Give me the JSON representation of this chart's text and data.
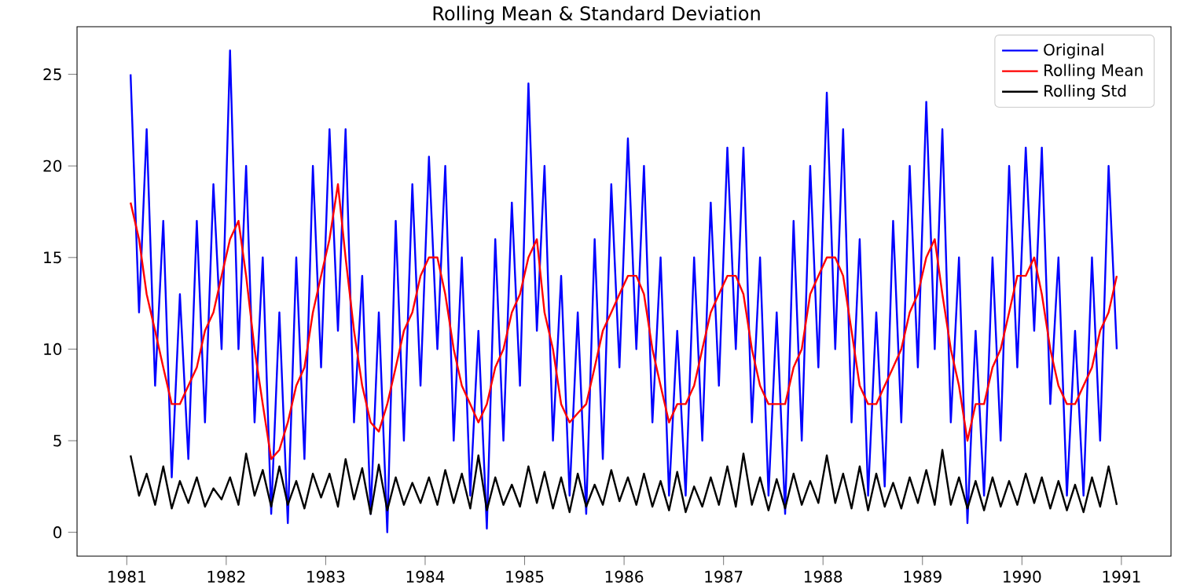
{
  "chart_data": {
    "type": "line",
    "title": "Rolling Mean & Standard Deviation",
    "x": [
      "1981-01-15",
      "1981-02-15",
      "1981-03-15",
      "1981-04-15",
      "1981-05-15",
      "1981-06-15",
      "1981-07-15",
      "1981-08-15",
      "1981-09-15",
      "1981-10-15",
      "1981-11-15",
      "1981-12-15",
      "1982-01-15",
      "1982-02-15",
      "1982-03-15",
      "1982-04-15",
      "1982-05-15",
      "1982-06-15",
      "1982-07-15",
      "1982-08-15",
      "1982-09-15",
      "1982-10-15",
      "1982-11-15",
      "1982-12-15",
      "1983-01-15",
      "1983-02-15",
      "1983-03-15",
      "1983-04-15",
      "1983-05-15",
      "1983-06-15",
      "1983-07-15",
      "1983-08-15",
      "1983-09-15",
      "1983-10-15",
      "1983-11-15",
      "1983-12-15",
      "1984-01-15",
      "1984-02-15",
      "1984-03-15",
      "1984-04-15",
      "1984-05-15",
      "1984-06-15",
      "1984-07-15",
      "1984-08-15",
      "1984-09-15",
      "1984-10-15",
      "1984-11-15",
      "1984-12-15",
      "1985-01-15",
      "1985-02-15",
      "1985-03-15",
      "1985-04-15",
      "1985-05-15",
      "1985-06-15",
      "1985-07-15",
      "1985-08-15",
      "1985-09-15",
      "1985-10-15",
      "1985-11-15",
      "1985-12-15",
      "1986-01-15",
      "1986-02-15",
      "1986-03-15",
      "1986-04-15",
      "1986-05-15",
      "1986-06-15",
      "1986-07-15",
      "1986-08-15",
      "1986-09-15",
      "1986-10-15",
      "1986-11-15",
      "1986-12-15",
      "1987-01-15",
      "1987-02-15",
      "1987-03-15",
      "1987-04-15",
      "1987-05-15",
      "1987-06-15",
      "1987-07-15",
      "1987-08-15",
      "1987-09-15",
      "1987-10-15",
      "1987-11-15",
      "1987-12-15",
      "1988-01-15",
      "1988-02-15",
      "1988-03-15",
      "1988-04-15",
      "1988-05-15",
      "1988-06-15",
      "1988-07-15",
      "1988-08-15",
      "1988-09-15",
      "1988-10-15",
      "1988-11-15",
      "1988-12-15",
      "1989-01-15",
      "1989-02-15",
      "1989-03-15",
      "1989-04-15",
      "1989-05-15",
      "1989-06-15",
      "1989-07-15",
      "1989-08-15",
      "1989-09-15",
      "1989-10-15",
      "1989-11-15",
      "1989-12-15",
      "1990-01-15",
      "1990-02-15",
      "1990-03-15",
      "1990-04-15",
      "1990-05-15",
      "1990-06-15",
      "1990-07-15",
      "1990-08-15",
      "1990-09-15",
      "1990-10-15",
      "1990-11-15",
      "1990-12-15"
    ],
    "series": [
      {
        "name": "Original",
        "color": "#0000ff",
        "values": [
          25,
          12,
          22,
          8,
          17,
          3,
          13,
          4,
          17,
          6,
          19,
          10,
          26.3,
          10,
          20,
          6,
          15,
          1,
          12,
          0.5,
          15,
          4,
          20,
          9,
          22,
          11,
          22,
          6,
          14,
          1,
          12,
          0,
          17,
          5,
          19,
          8,
          20.5,
          10,
          20,
          5,
          15,
          2,
          11,
          0.2,
          16,
          5,
          18,
          8,
          24.5,
          11,
          20,
          5,
          14,
          2,
          12,
          1,
          16,
          4,
          19,
          9,
          21.5,
          10,
          20,
          6,
          15,
          2,
          11,
          2,
          15,
          5,
          18,
          8,
          21,
          10,
          21,
          6,
          15,
          2,
          12,
          1,
          17,
          5,
          20,
          9,
          24,
          10,
          22,
          6,
          16,
          2,
          12,
          2.5,
          17,
          6,
          20,
          9,
          23.5,
          10,
          22,
          6,
          15,
          0.5,
          11,
          2,
          15,
          5,
          20,
          9,
          21,
          11,
          21,
          7,
          15,
          2,
          11,
          2,
          15,
          5,
          20,
          10
        ]
      },
      {
        "name": "Rolling Mean",
        "color": "#ff0000",
        "values": [
          18,
          16,
          13,
          11,
          9,
          7,
          7,
          8,
          9,
          11,
          12,
          14,
          16,
          17,
          14,
          10,
          7,
          4,
          4.5,
          6,
          8,
          9,
          12,
          14,
          16,
          19,
          15,
          11,
          8,
          6,
          5.5,
          7,
          9,
          11,
          12,
          14,
          15,
          15,
          13,
          10,
          8,
          7,
          6,
          7,
          9,
          10,
          12,
          13,
          15,
          16,
          12,
          10,
          7,
          6,
          6.5,
          7,
          9,
          11,
          12,
          13,
          14,
          14,
          13,
          10,
          8,
          6,
          7,
          7,
          8,
          10,
          12,
          13,
          14,
          14,
          13,
          10,
          8,
          7,
          7,
          7,
          9,
          10,
          13,
          14,
          15,
          15,
          14,
          11,
          8,
          7,
          7,
          8,
          9,
          10,
          12,
          13,
          15,
          16,
          13,
          10,
          8,
          5,
          7,
          7,
          9,
          10,
          12,
          14,
          14,
          15,
          13,
          10,
          8,
          7,
          7,
          8,
          9,
          11,
          12,
          14
        ]
      },
      {
        "name": "Rolling Std",
        "color": "#000000",
        "values": [
          4.2,
          2.0,
          3.2,
          1.5,
          3.6,
          1.3,
          2.8,
          1.6,
          3.0,
          1.4,
          2.4,
          1.8,
          3.0,
          1.5,
          4.3,
          2.0,
          3.4,
          1.4,
          3.6,
          1.5,
          2.8,
          1.3,
          3.2,
          1.9,
          3.2,
          1.4,
          4.0,
          1.8,
          3.5,
          1.0,
          3.7,
          1.2,
          3.0,
          1.5,
          2.7,
          1.6,
          3.0,
          1.5,
          3.4,
          1.6,
          3.2,
          1.3,
          4.2,
          1.2,
          3.0,
          1.5,
          2.6,
          1.4,
          3.6,
          1.6,
          3.3,
          1.3,
          3.0,
          1.1,
          3.2,
          1.4,
          2.6,
          1.5,
          3.4,
          1.7,
          3.0,
          1.5,
          3.2,
          1.4,
          2.8,
          1.2,
          3.3,
          1.1,
          2.5,
          1.4,
          3.0,
          1.5,
          3.6,
          1.4,
          4.3,
          1.5,
          3.0,
          1.2,
          2.9,
          1.3,
          3.2,
          1.5,
          2.8,
          1.6,
          4.2,
          1.6,
          3.2,
          1.3,
          3.6,
          1.2,
          3.2,
          1.4,
          2.7,
          1.3,
          3.0,
          1.6,
          3.4,
          1.5,
          4.5,
          1.5,
          3.0,
          1.3,
          2.8,
          1.2,
          3.0,
          1.4,
          2.8,
          1.5,
          3.2,
          1.6,
          3.0,
          1.3,
          2.8,
          1.2,
          2.6,
          1.1,
          3.0,
          1.4,
          3.6,
          1.5
        ]
      }
    ],
    "xlim": [
      "1980-07-02",
      "1991-07-02"
    ],
    "xticks": [
      "1981",
      "1982",
      "1983",
      "1984",
      "1985",
      "1986",
      "1987",
      "1988",
      "1989",
      "1990",
      "1991"
    ],
    "ylim": [
      -1.3,
      27.6
    ],
    "yticks": [
      0,
      5,
      10,
      15,
      20,
      25
    ],
    "legend": "top right",
    "grid": false,
    "line_style": "solid"
  }
}
